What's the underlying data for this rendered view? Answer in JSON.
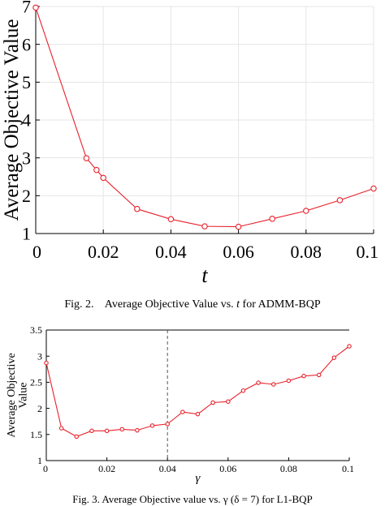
{
  "chart_data": [
    {
      "type": "line",
      "xlabel": "t",
      "ylabel": "Average Objective Value",
      "xlim": [
        0,
        0.1
      ],
      "ylim": [
        1,
        7
      ],
      "xticks": [
        "0",
        "0.02",
        "0.04",
        "0.06",
        "0.08",
        "0.1"
      ],
      "yticks": [
        "1",
        "2",
        "3",
        "4",
        "5",
        "6",
        "7"
      ],
      "grid": true,
      "color": "#e8212b",
      "series": [
        {
          "x": [
            0,
            0.015,
            0.018,
            0.02,
            0.03,
            0.04,
            0.05,
            0.06,
            0.07,
            0.08,
            0.09,
            0.1
          ],
          "y": [
            6.97,
            2.99,
            2.68,
            2.47,
            1.65,
            1.38,
            1.19,
            1.18,
            1.39,
            1.6,
            1.88,
            2.19
          ]
        }
      ]
    },
    {
      "type": "line",
      "xlabel": "γ",
      "ylabel": "Average Objective Value",
      "xlim": [
        0,
        0.1
      ],
      "ylim": [
        1,
        3.5
      ],
      "xticks": [
        "0",
        "0.02",
        "0.04",
        "0.06",
        "0.08",
        "0.1"
      ],
      "yticks": [
        "1",
        "1.5",
        "2",
        "2.5",
        "3",
        "3.5"
      ],
      "grid": false,
      "vline_x": 0.04,
      "color": "#e8212b",
      "series": [
        {
          "x": [
            0,
            0.005,
            0.01,
            0.015,
            0.02,
            0.025,
            0.03,
            0.035,
            0.04,
            0.045,
            0.05,
            0.055,
            0.06,
            0.065,
            0.07,
            0.075,
            0.08,
            0.085,
            0.09,
            0.095,
            0.1
          ],
          "y": [
            2.87,
            1.62,
            1.46,
            1.57,
            1.57,
            1.6,
            1.58,
            1.67,
            1.7,
            1.93,
            1.89,
            2.11,
            2.13,
            2.34,
            2.49,
            2.46,
            2.53,
            2.62,
            2.64,
            2.97,
            3.19
          ]
        }
      ]
    }
  ],
  "captions": {
    "fig2_label": "Fig. 2.",
    "fig2_text": "Average Objective Value vs.",
    "fig2_var": "t",
    "fig2_suffix": "for ADMM-BQP",
    "fig3_text": "Fig. 3.    Average Objective value vs. γ (δ = 7) for L1-BQP"
  }
}
